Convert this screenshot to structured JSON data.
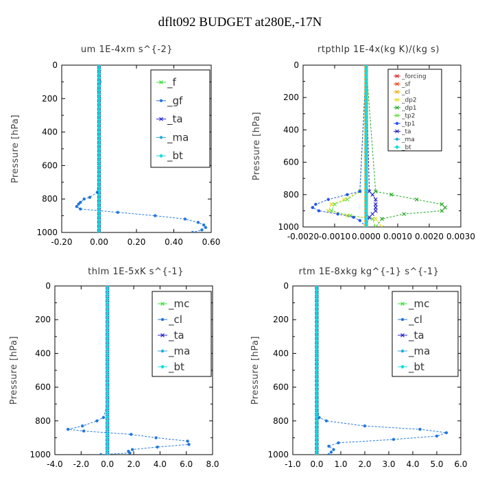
{
  "figure_title": "dflt092  BUDGET at280E,-17N",
  "colors": {
    "f": "#33dd33",
    "gf": "#2277dd",
    "ta": "#2222cc",
    "ma": "#22aadd",
    "bt": "#11dddd",
    "forcing": "#dd2222",
    "sf": "#ee4411",
    "cl": "#eeaa11",
    "dp2": "#dddd22",
    "dp1": "#22aa22",
    "tp2": "#66dd44",
    "tp1": "#2255ee",
    "mc": "#33dd33",
    "clb": "#2277dd"
  },
  "chart_data": [
    {
      "id": "um",
      "type": "line",
      "title": "um  1E-4xm s^{-2}",
      "ylabel": "Pressure [hPa]",
      "xlim": [
        -0.2,
        0.6
      ],
      "ylim": [
        1000,
        0
      ],
      "xticks": [
        "-0.20",
        "0.00",
        "0.20",
        "0.40",
        "0.60"
      ],
      "xtick_values": [
        -0.2,
        0.0,
        0.2,
        0.4,
        0.6
      ],
      "yticks": [
        "0",
        "200",
        "400",
        "600",
        "800",
        "1000"
      ],
      "legend": [
        "_f",
        "_gf",
        "_ta",
        "_ma",
        "_bt"
      ],
      "legend_keys": [
        "f",
        "gf",
        "ta",
        "ma",
        "bt"
      ],
      "series": [
        {
          "name": "_f",
          "key": "f",
          "y": [
            0,
            1000
          ],
          "x": [
            0.0,
            0.0
          ]
        },
        {
          "name": "_gf",
          "key": "gf",
          "y": [
            0,
            100,
            150,
            200,
            300,
            500,
            700,
            760,
            790,
            800,
            820,
            830,
            845,
            860,
            880,
            900,
            920,
            940,
            955,
            970,
            985,
            1000
          ],
          "x": [
            0,
            0.005,
            0,
            0,
            0,
            0,
            0,
            -0.01,
            -0.05,
            -0.08,
            -0.1,
            -0.11,
            -0.12,
            -0.1,
            0.1,
            0.3,
            0.46,
            0.53,
            0.56,
            0.57,
            0.55,
            0.5
          ]
        },
        {
          "name": "_ta",
          "key": "ta",
          "y": [
            0,
            1000
          ],
          "x": [
            0.0,
            0.0
          ]
        },
        {
          "name": "_ma",
          "key": "ma",
          "y": [
            0,
            100,
            150,
            200,
            250,
            500,
            1000
          ],
          "x": [
            0,
            0.005,
            -0.003,
            0.003,
            0,
            0,
            0
          ]
        },
        {
          "name": "_bt",
          "key": "bt",
          "y": [
            0,
            1000
          ],
          "x": [
            0.0,
            0.0
          ]
        }
      ]
    },
    {
      "id": "rtpthlp",
      "type": "line",
      "title": "rtpthlp  1E-4x(kg K)/(kg s)",
      "ylabel": "Pressure [hPa]",
      "xlim": [
        -0.002,
        0.003
      ],
      "ylim": [
        1000,
        0
      ],
      "xticks": [
        "-0.0020",
        "-0.0010",
        "0.0000",
        "0.0010",
        "0.0020",
        "0.0030"
      ],
      "xtick_values": [
        -0.002,
        -0.001,
        0.0,
        0.001,
        0.002,
        0.003
      ],
      "yticks": [
        "0",
        "200",
        "400",
        "600",
        "800",
        "1000"
      ],
      "legend": [
        "_forcing",
        "_sf",
        "_cl",
        "_dp2",
        "_dp1",
        "_tp2",
        "_tp1",
        "_ta",
        "_ma",
        "_bt"
      ],
      "legend_keys": [
        "forcing",
        "sf",
        "cl",
        "dp2",
        "dp1",
        "tp2",
        "tp1",
        "ta",
        "ma",
        "bt"
      ],
      "series": [
        {
          "name": "_forcing",
          "key": "forcing",
          "y": [
            0,
            1000
          ],
          "x": [
            0.0,
            0.0
          ]
        },
        {
          "name": "_sf",
          "key": "sf",
          "y": [
            0,
            1000
          ],
          "x": [
            0.0,
            0.0
          ]
        },
        {
          "name": "_cl",
          "key": "cl",
          "y": [
            0,
            1000
          ],
          "x": [
            0.0,
            0.0
          ]
        },
        {
          "name": "_dp2",
          "key": "dp2",
          "y": [
            0,
            780,
            830,
            860,
            900,
            930,
            950,
            1000
          ],
          "x": [
            0,
            -0.0002,
            -0.0007,
            -0.0011,
            -0.0012,
            -0.0006,
            0.0003,
            0.0005
          ]
        },
        {
          "name": "_dp1",
          "key": "dp1",
          "y": [
            0,
            780,
            800,
            830,
            860,
            880,
            900,
            920,
            950,
            1000
          ],
          "x": [
            0,
            0.0003,
            0.0008,
            0.0016,
            0.0024,
            0.0025,
            0.0024,
            0.0012,
            0.0005,
            0.0003
          ]
        },
        {
          "name": "_tp2",
          "key": "tp2",
          "y": [
            0,
            780,
            830,
            860,
            900,
            930,
            950,
            1000
          ],
          "x": [
            0,
            -0.0002,
            -0.0006,
            -0.001,
            -0.0011,
            -0.0005,
            0.0002,
            0.0003
          ]
        },
        {
          "name": "_tp1",
          "key": "tp1",
          "y": [
            0,
            780,
            800,
            830,
            860,
            880,
            900,
            920,
            940,
            960,
            1000
          ],
          "x": [
            0,
            -0.0002,
            -0.0006,
            -0.0012,
            -0.0016,
            -0.0017,
            -0.0015,
            -0.0009,
            -0.0004,
            -0.0002,
            0
          ]
        },
        {
          "name": "_ta",
          "key": "ta",
          "y": [
            0,
            780,
            800,
            830,
            860,
            880,
            900,
            920,
            940,
            1000
          ],
          "x": [
            0,
            0.0001,
            0.0002,
            0.0003,
            0.0003,
            0.0003,
            0.0003,
            0.0002,
            0.0001,
            0
          ]
        },
        {
          "name": "_ma",
          "key": "ma",
          "y": [
            0,
            1000
          ],
          "x": [
            0.0,
            0.0
          ]
        },
        {
          "name": "_bt",
          "key": "bt",
          "y": [
            0,
            1000
          ],
          "x": [
            0.0,
            0.0
          ]
        }
      ]
    },
    {
      "id": "thlm",
      "type": "line",
      "title": "thlm  1E-5xK s^{-1}",
      "ylabel": "Pressure [hPa]",
      "xlim": [
        -4.0,
        8.0
      ],
      "ylim": [
        1000,
        0
      ],
      "xticks": [
        "-4.0",
        "-2.0",
        "0.0",
        "2.0",
        "4.0",
        "6.0",
        "8.0"
      ],
      "xtick_values": [
        -4,
        -2,
        0,
        2,
        4,
        6,
        8
      ],
      "yticks": [
        "0",
        "200",
        "400",
        "600",
        "800",
        "1000"
      ],
      "legend": [
        "_mc",
        "_cl",
        "_ta",
        "_ma",
        "_bt"
      ],
      "legend_keys": [
        "mc",
        "clb",
        "ta",
        "ma",
        "bt"
      ],
      "series": [
        {
          "name": "_mc",
          "key": "mc",
          "y": [
            0,
            1000
          ],
          "x": [
            0.0,
            0.0
          ]
        },
        {
          "name": "_cl",
          "key": "clb",
          "y": [
            0,
            700,
            780,
            800,
            830,
            850,
            860,
            880,
            900,
            920,
            940,
            955,
            970,
            980,
            990,
            1000
          ],
          "x": [
            0,
            0,
            -0.3,
            -0.8,
            -1.9,
            -3.0,
            -1.8,
            1.8,
            3.7,
            6.1,
            6.2,
            3.8,
            1.9,
            1.6,
            1.7,
            -0.5
          ]
        },
        {
          "name": "_ta",
          "key": "ta",
          "y": [
            0,
            1000
          ],
          "x": [
            0.0,
            0.0
          ]
        },
        {
          "name": "_ma",
          "key": "ma",
          "y": [
            0,
            1000
          ],
          "x": [
            0.0,
            0.0
          ]
        },
        {
          "name": "_bt",
          "key": "bt",
          "y": [
            0,
            1000
          ],
          "x": [
            0.0,
            0.0
          ]
        }
      ]
    },
    {
      "id": "rtm",
      "type": "line",
      "title": "rtm  1E-8xkg kg^{-1} s^{-1}",
      "ylabel": "Pressure [hPa]",
      "xlim": [
        -1.0,
        6.0
      ],
      "ylim": [
        1000,
        0
      ],
      "xticks": [
        "-1.0",
        "0.0",
        "1.0",
        "2.0",
        "3.0",
        "4.0",
        "5.0",
        "6.0"
      ],
      "xtick_values": [
        -1,
        0,
        1,
        2,
        3,
        4,
        5,
        6
      ],
      "yticks": [
        "0",
        "200",
        "400",
        "600",
        "800",
        "1000"
      ],
      "legend": [
        "_mc",
        "_cl",
        "_ta",
        "_ma",
        "_bt"
      ],
      "legend_keys": [
        "mc",
        "clb",
        "ta",
        "ma",
        "bt"
      ],
      "series": [
        {
          "name": "_mc",
          "key": "mc",
          "y": [
            0,
            1000
          ],
          "x": [
            0.0,
            0.0
          ]
        },
        {
          "name": "_cl",
          "key": "clb",
          "y": [
            0,
            700,
            780,
            800,
            830,
            850,
            870,
            890,
            910,
            930,
            950,
            970,
            985,
            1000
          ],
          "x": [
            0,
            0,
            0.1,
            0.4,
            2.0,
            4.3,
            5.4,
            5.0,
            3.2,
            0.9,
            0.5,
            0.7,
            0.6,
            0.5
          ]
        },
        {
          "name": "_ta",
          "key": "ta",
          "y": [
            0,
            1000
          ],
          "x": [
            0.0,
            0.0
          ]
        },
        {
          "name": "_ma",
          "key": "ma",
          "y": [
            0,
            1000
          ],
          "x": [
            0.0,
            0.0
          ]
        },
        {
          "name": "_bt",
          "key": "bt",
          "y": [
            0,
            1000
          ],
          "x": [
            0.0,
            0.0
          ]
        }
      ]
    }
  ]
}
